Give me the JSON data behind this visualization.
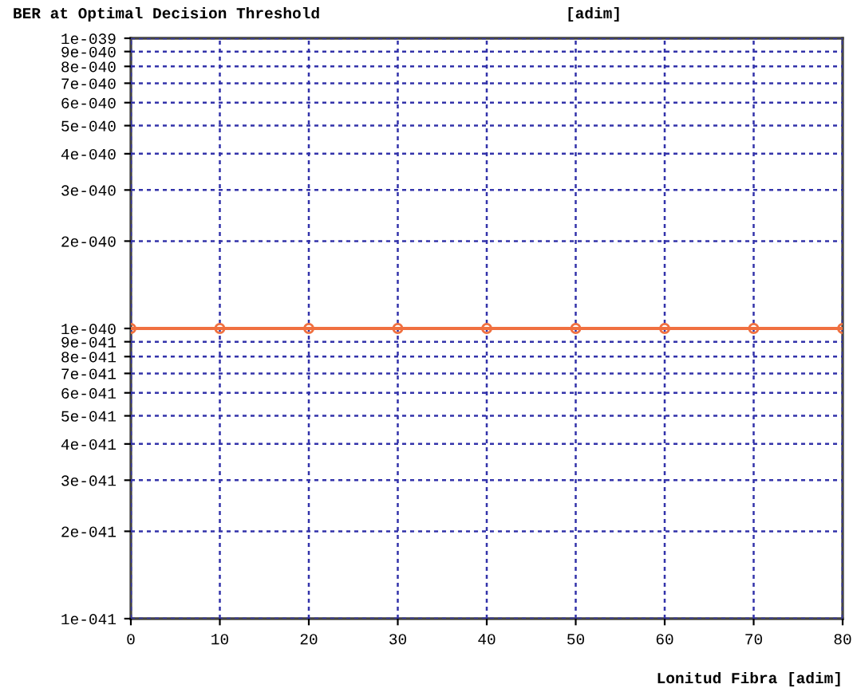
{
  "chart_data": {
    "type": "line",
    "title": "BER at Optimal Decision Threshold",
    "ylabel": "[adim]",
    "xlabel": "Lonitud Fibra [adim]",
    "x": [
      0,
      10,
      20,
      30,
      40,
      50,
      60,
      70,
      80
    ],
    "series": [
      {
        "color": "#f07040",
        "values": [
          1e-40,
          1e-40,
          1e-40,
          1e-40,
          1e-40,
          1e-40,
          1e-40,
          1e-40,
          1e-40
        ]
      }
    ],
    "marker": "circle",
    "line_style": "solid",
    "log": "y",
    "grid": true,
    "xlim": [
      0,
      80
    ],
    "xticks": [
      0,
      10,
      20,
      30,
      40,
      50,
      60,
      70,
      80
    ],
    "ylim": [
      1e-41,
      1e-39
    ],
    "yticks": [
      {
        "value": 1e-41,
        "label": "1e-041"
      },
      {
        "value": 2e-41,
        "label": "2e-041"
      },
      {
        "value": 3e-41,
        "label": "3e-041"
      },
      {
        "value": 4e-41,
        "label": "4e-041"
      },
      {
        "value": 5e-41,
        "label": "5e-041"
      },
      {
        "value": 6e-41,
        "label": "6e-041"
      },
      {
        "value": 7e-41,
        "label": "7e-041"
      },
      {
        "value": 8e-41,
        "label": "8e-041"
      },
      {
        "value": 9e-41,
        "label": "9e-041"
      },
      {
        "value": 1e-40,
        "label": "1e-040"
      },
      {
        "value": 2e-40,
        "label": "2e-040"
      },
      {
        "value": 3e-40,
        "label": "3e-040"
      },
      {
        "value": 4e-40,
        "label": "4e-040"
      },
      {
        "value": 5e-40,
        "label": "5e-040"
      },
      {
        "value": 6e-40,
        "label": "6e-040"
      },
      {
        "value": 7e-40,
        "label": "7e-040"
      },
      {
        "value": 8e-40,
        "label": "8e-040"
      },
      {
        "value": 9e-40,
        "label": "9e-040"
      },
      {
        "value": 1e-39,
        "label": "1e-039"
      }
    ]
  }
}
